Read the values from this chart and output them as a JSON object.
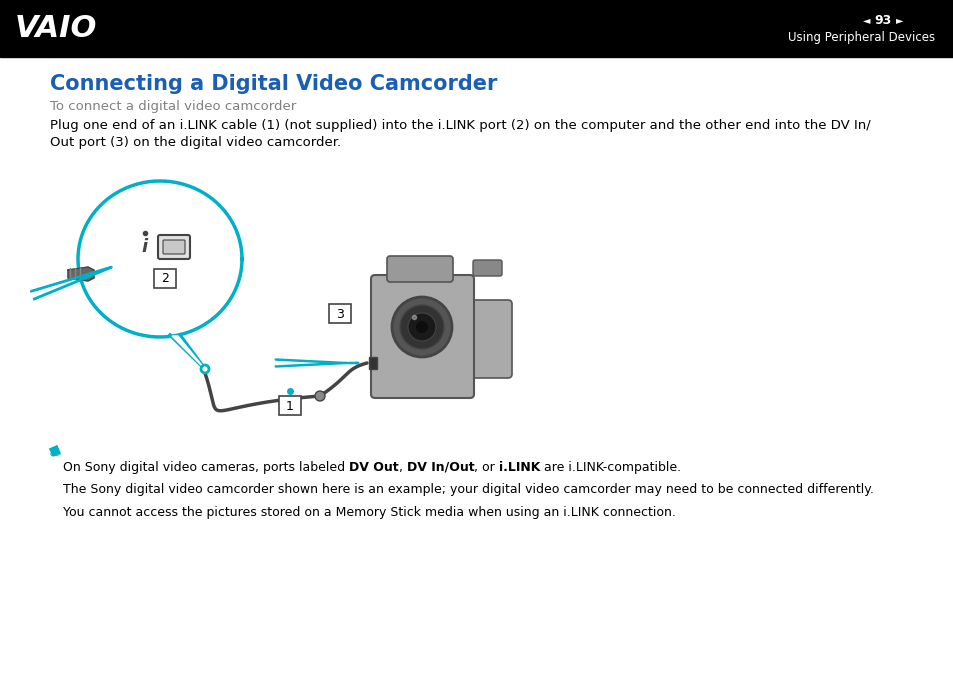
{
  "bg_color": "#ffffff",
  "header_bg": "#000000",
  "page_number": "93",
  "section_title": "Using Peripheral Devices",
  "main_title": "Connecting a Digital Video Camcorder",
  "main_title_color": "#1a5fb4",
  "subtitle": "To connect a digital video camcorder",
  "subtitle_color": "#808080",
  "body_text_line1": "Plug one end of an i.LINK cable (1) (not supplied) into the i.LINK port (2) on the computer and the other end into the DV In/",
  "body_text_line2": "Out port (3) on the digital video camcorder.",
  "note_line1_pre": "On Sony digital video cameras, ports labeled ",
  "note_line1_bold1": "DV Out",
  "note_line1_mid1": ", ",
  "note_line1_bold2": "DV In/Out",
  "note_line1_mid2": ", or ",
  "note_line1_bold3": "i.LINK",
  "note_line1_post": " are i.LINK-compatible.",
  "note_line2": "The Sony digital video camcorder shown here is an example; your digital video camcorder may need to be connected differently.",
  "note_line3": "You cannot access the pictures stored on a Memory Stick media when using an i.LINK connection.",
  "cyan_color": "#00b0c8",
  "label_border": "#555555",
  "text_color": "#000000",
  "gray_dark": "#444444",
  "gray_mid": "#888888",
  "gray_light": "#bbbbbb",
  "gray_cam": "#999999"
}
